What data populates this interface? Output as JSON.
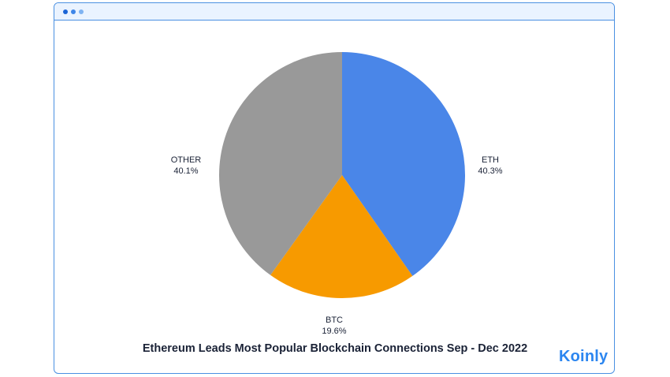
{
  "window": {
    "dots_colors": [
      "#1a64d6",
      "#3f86e8",
      "#7fb3f2"
    ]
  },
  "brand": {
    "logo_text": "Koinly",
    "logo_color": "#2c86f0"
  },
  "chart_data": {
    "type": "pie",
    "title": "Ethereum Leads Most Popular Blockchain Connections Sep - Dec 2022",
    "slices": [
      {
        "label": "ETH",
        "value": 40.3,
        "display": "40.3%",
        "color": "#4a86e8"
      },
      {
        "label": "BTC",
        "value": 19.6,
        "display": "19.6%",
        "color": "#f79a00"
      },
      {
        "label": "OTHER",
        "value": 40.1,
        "display": "40.1%",
        "color": "#999999"
      }
    ],
    "start": "12 o'clock, clockwise",
    "legend": "none (labels beside slices)"
  }
}
